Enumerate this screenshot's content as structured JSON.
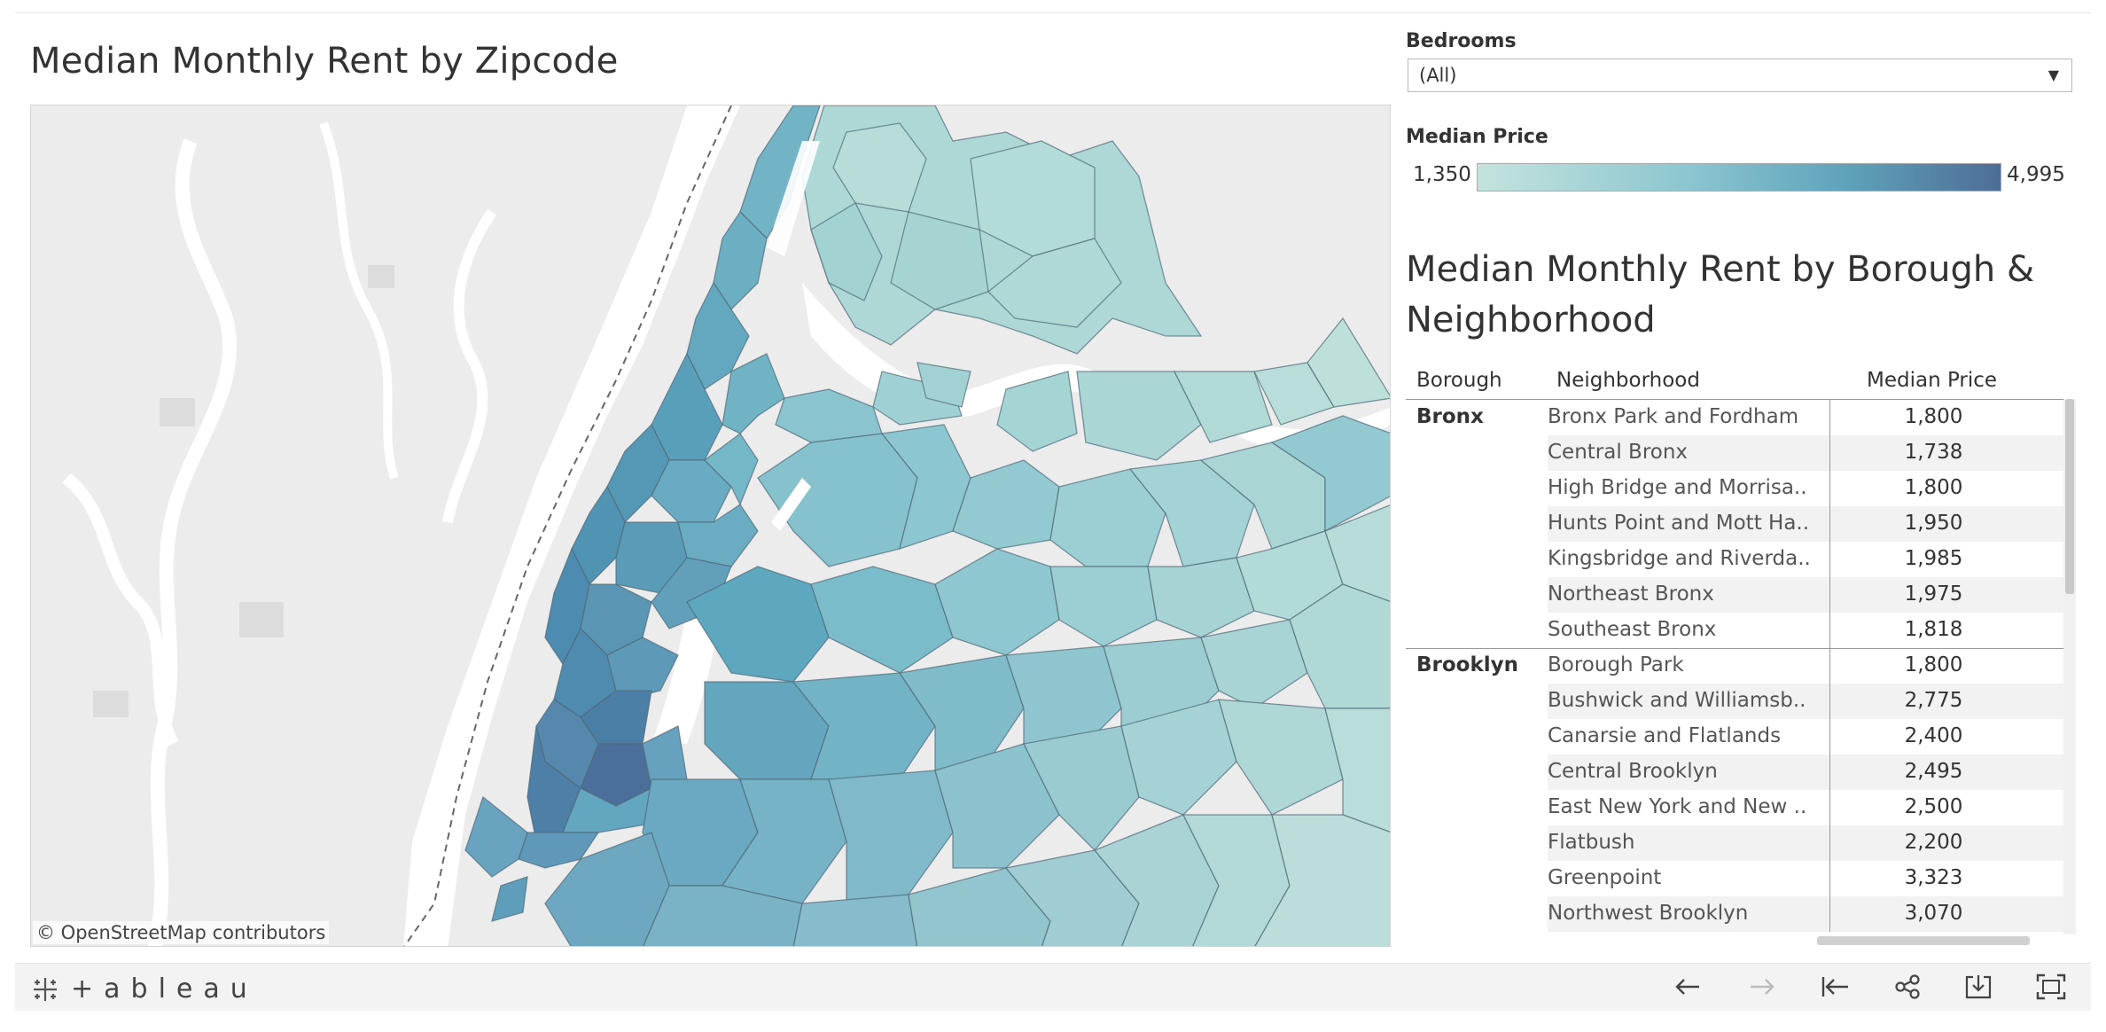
{
  "map": {
    "title": "Median Monthly Rent by Zipcode",
    "credit": "© OpenStreetMap contributors"
  },
  "filter": {
    "label": "Bedrooms",
    "value": "(All)"
  },
  "legend": {
    "label": "Median Price",
    "min": "1,350",
    "max": "4,995",
    "color_low": "#c4e3dd",
    "color_high": "#4e6d97"
  },
  "table": {
    "title": "Median Monthly Rent by Borough & Neighborhood",
    "headers": {
      "borough": "Borough",
      "neighborhood": "Neighborhood",
      "price": "Median Price"
    },
    "groups": [
      {
        "borough": "Bronx",
        "rows": [
          {
            "neighborhood": "Bronx Park and Fordham",
            "price": "1,800"
          },
          {
            "neighborhood": "Central Bronx",
            "price": "1,738"
          },
          {
            "neighborhood": "High Bridge and Morrisa..",
            "price": "1,800"
          },
          {
            "neighborhood": "Hunts Point and Mott Ha..",
            "price": "1,950"
          },
          {
            "neighborhood": "Kingsbridge and Riverda..",
            "price": "1,985"
          },
          {
            "neighborhood": "Northeast Bronx",
            "price": "1,975"
          },
          {
            "neighborhood": "Southeast Bronx",
            "price": "1,818"
          }
        ]
      },
      {
        "borough": "Brooklyn",
        "rows": [
          {
            "neighborhood": "Borough Park",
            "price": "1,800"
          },
          {
            "neighborhood": "Bushwick and Williamsb..",
            "price": "2,775"
          },
          {
            "neighborhood": "Canarsie and Flatlands",
            "price": "2,400"
          },
          {
            "neighborhood": "Central Brooklyn",
            "price": "2,495"
          },
          {
            "neighborhood": "East New York and New ..",
            "price": "2,500"
          },
          {
            "neighborhood": "Flatbush",
            "price": "2,200"
          },
          {
            "neighborhood": "Greenpoint",
            "price": "3,323"
          },
          {
            "neighborhood": "Northwest Brooklyn",
            "price": "3,070"
          }
        ]
      }
    ]
  },
  "toolbar": {
    "brand": "+ableau",
    "icons": [
      "undo-icon",
      "redo-icon",
      "revert-icon",
      "share-icon",
      "download-icon",
      "fullscreen-icon"
    ]
  }
}
